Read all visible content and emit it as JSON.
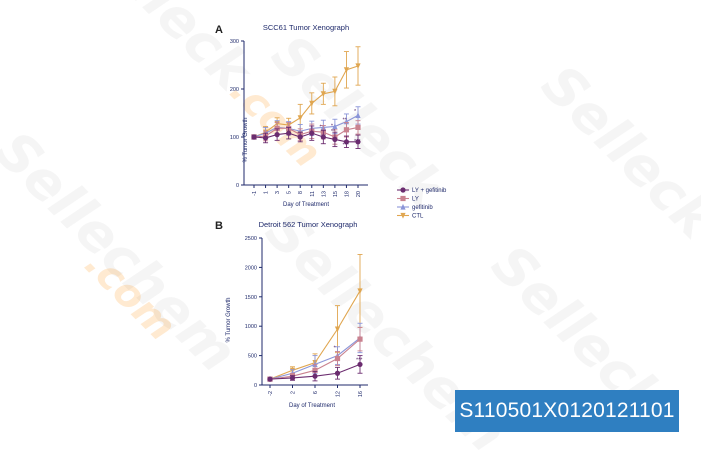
{
  "panels": [
    {
      "letter": "A",
      "title": "SCC61 Tumor Xenograph",
      "xlabel": "Day of Treatment",
      "ylabel": "% Tumor Growth"
    },
    {
      "letter": "B",
      "title": "Detroit 562 Tumor Xenograph",
      "xlabel": "Day of Treatment",
      "ylabel": "% Tumor Growth"
    }
  ],
  "legend": [
    {
      "label": "LY + gefitinib",
      "color": "#6b2c6f"
    },
    {
      "label": "LY",
      "color": "#c9828f"
    },
    {
      "label": "gefitinib",
      "color": "#8b95d8"
    },
    {
      "label": "CTL",
      "color": "#e0a650"
    }
  ],
  "watermark": {
    "brand": "Selleck",
    "brand2": "Sellechem",
    "suffix": ".com"
  },
  "catalog_label": "S110501X0120121101",
  "chart_data": [
    {
      "type": "line",
      "title": "SCC61 Tumor Xenograph",
      "xlabel": "Day of Treatment",
      "ylabel": "% Tumor Growth",
      "x": [
        "-1",
        "1",
        "3",
        "5",
        "8",
        "11",
        "13",
        "15",
        "18",
        "20"
      ],
      "ylim": [
        0,
        300
      ],
      "yticks": [
        "0",
        "100",
        "200",
        "300"
      ],
      "series": [
        {
          "name": "LY + gefitinib",
          "color": "#6b2c6f",
          "marker": "circle",
          "values": [
            100,
            98,
            105,
            108,
            100,
            108,
            100,
            95,
            90,
            90
          ],
          "errors": [
            4,
            10,
            12,
            12,
            10,
            15,
            14,
            15,
            12,
            14
          ]
        },
        {
          "name": "LY",
          "color": "#c9828f",
          "marker": "square",
          "values": [
            100,
            102,
            118,
            118,
            105,
            112,
            110,
            100,
            115,
            120
          ],
          "errors": [
            4,
            10,
            12,
            12,
            12,
            15,
            14,
            15,
            15,
            14
          ]
        },
        {
          "name": "gefitinib",
          "color": "#8b95d8",
          "marker": "triangle",
          "values": [
            100,
            108,
            120,
            118,
            112,
            118,
            120,
            122,
            132,
            145
          ],
          "errors": [
            4,
            12,
            14,
            14,
            14,
            15,
            15,
            15,
            16,
            18
          ]
        },
        {
          "name": "CTL",
          "color": "#e0a650",
          "marker": "inverted-triangle",
          "values": [
            100,
            110,
            128,
            125,
            140,
            170,
            190,
            195,
            240,
            248
          ],
          "errors": [
            4,
            12,
            12,
            14,
            28,
            22,
            22,
            30,
            38,
            40
          ]
        }
      ],
      "annotations": [
        "*",
        "**",
        "*",
        "**",
        "***",
        "*",
        "***"
      ]
    },
    {
      "type": "line",
      "title": "Detroit 562 Tumor Xenograph",
      "xlabel": "Day of Treatment",
      "ylabel": "% Tumor Growth",
      "x": [
        "-2",
        "2",
        "6",
        "12",
        "16"
      ],
      "ylim": [
        0,
        2500
      ],
      "yticks": [
        "0",
        "500",
        "1000",
        "1500",
        "2000",
        "2500"
      ],
      "series": [
        {
          "name": "LY + gefitinib",
          "color": "#6b2c6f",
          "marker": "circle",
          "values": [
            100,
            120,
            150,
            200,
            350
          ],
          "errors": [
            20,
            40,
            80,
            100,
            150
          ]
        },
        {
          "name": "LY",
          "color": "#c9828f",
          "marker": "square",
          "values": [
            100,
            150,
            250,
            450,
            780
          ],
          "errors": [
            20,
            50,
            100,
            120,
            200
          ]
        },
        {
          "name": "gefitinib",
          "color": "#8b95d8",
          "marker": "triangle",
          "values": [
            100,
            200,
            350,
            500,
            800
          ],
          "errors": [
            20,
            60,
            150,
            150,
            250
          ]
        },
        {
          "name": "CTL",
          "color": "#e0a650",
          "marker": "inverted-triangle",
          "values": [
            100,
            250,
            380,
            950,
            1600
          ],
          "errors": [
            20,
            60,
            150,
            400,
            620
          ]
        }
      ],
      "annotations": [
        "*",
        "***"
      ]
    }
  ]
}
